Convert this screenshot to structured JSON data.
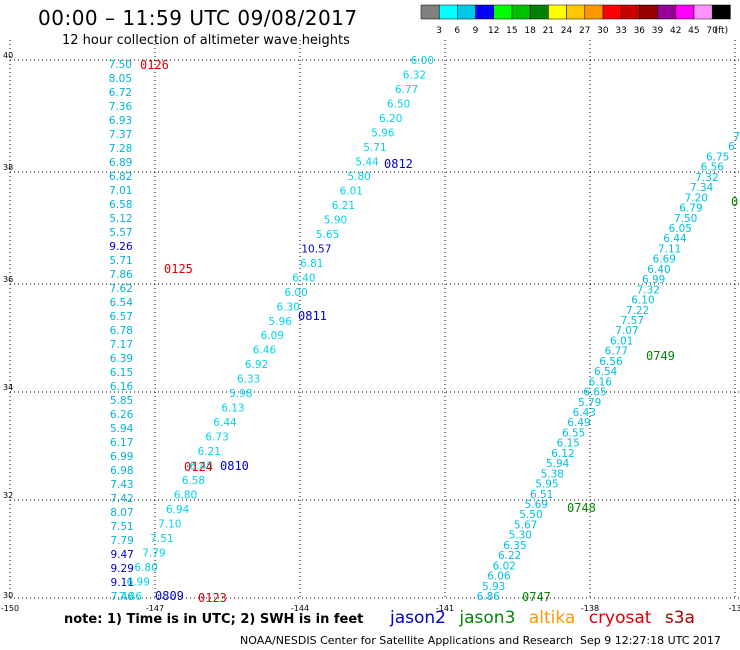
{
  "header": {
    "title": "00:00 – 11:59 UTC 09/08/2017",
    "subtitle": "12 hour collection of altimeter wave heights"
  },
  "colorbar": {
    "labels": [
      "3",
      "6",
      "9",
      "12",
      "15",
      "18",
      "21",
      "24",
      "27",
      "30",
      "33",
      "36",
      "39",
      "42",
      "45",
      "70",
      "(ft)"
    ],
    "colors": [
      "#808080",
      "#00ffff",
      "#00c8e6",
      "#0000ff",
      "#00ff00",
      "#00c000",
      "#008000",
      "#ffff00",
      "#ffc800",
      "#ff9600",
      "#ff0000",
      "#c80000",
      "#960000",
      "#960096",
      "#ff00ff",
      "#ff96ff",
      "#000000"
    ]
  },
  "axes": {
    "y_labels": [
      "40",
      "38",
      "36",
      "34",
      "32",
      "30"
    ],
    "x_labels": [
      "-150",
      "-147",
      "-144",
      "-141",
      "-138",
      "-13"
    ]
  },
  "tracks": {
    "west_labels": [
      "7.50",
      "8.05",
      "6.72",
      "7.36",
      "6.93",
      "7.37",
      "7.28",
      "6.89",
      "6.82",
      "7.01",
      "6.58",
      "5.12",
      "5.57",
      "9.26",
      "5.71",
      "7.86",
      "7.62",
      "6.54",
      "6.57",
      "6.78",
      "7.17",
      "6.39",
      "6.15",
      "6.16",
      "5.85",
      "6.26",
      "5.94",
      "6.17",
      "6.99",
      "6.98",
      "7.43",
      "7.42",
      "8.07",
      "7.51",
      "7.79",
      "9.47",
      "9.29",
      "9.11",
      "7.46"
    ],
    "west_highlight": [
      13,
      35,
      36,
      37
    ],
    "diag_labels": [
      "6.00",
      "6.32",
      "6.77",
      "6.50",
      "6.20",
      "5.96",
      "5.71",
      "5.44",
      "5.80",
      "6.01",
      "6.21",
      "5.90",
      "5.65",
      "10.57",
      "6.81",
      "6.40",
      "6.00",
      "6.30",
      "5.96",
      "6.09",
      "6.46",
      "6.92",
      "6.33",
      "5.98",
      "6.13",
      "6.44",
      "6.73",
      "6.21",
      "6.45",
      "6.58",
      "6.80",
      "6.94",
      "7.10",
      "7.51",
      "7.79",
      "6.80",
      "6.99",
      "7.46"
    ],
    "diag_highlight": [
      13
    ],
    "east_labels": [
      "7",
      "6",
      "6.75",
      "6.56",
      "7.32",
      "7.34",
      "7.20",
      "6.79",
      "7.50",
      "6.05",
      "6.44",
      "7.11",
      "6.69",
      "6.40",
      "6.99",
      "7.32",
      "6.10",
      "7.22",
      "7.57",
      "7.07",
      "6.01",
      "6.77",
      "6.56",
      "6.54",
      "6.16",
      "6.65",
      "5.79",
      "6.43",
      "6.49",
      "6.55",
      "6.15",
      "6.12",
      "5.94",
      "5.38",
      "5.95",
      "6.51",
      "5.69",
      "5.50",
      "5.67",
      "5.30",
      "6.35",
      "6.22",
      "6.02",
      "6.06",
      "5.93",
      "6.86"
    ]
  },
  "time_marks": [
    {
      "text": "0126",
      "sat": "cryosat"
    },
    {
      "text": "0125",
      "sat": "cryosat"
    },
    {
      "text": "0124",
      "sat": "cryosat"
    },
    {
      "text": "0123",
      "sat": "cryosat"
    },
    {
      "text": "0812",
      "sat": "jason2"
    },
    {
      "text": "0811",
      "sat": "jason2"
    },
    {
      "text": "0810",
      "sat": "jason2"
    },
    {
      "text": "0809",
      "sat": "jason2"
    },
    {
      "text": "0749",
      "sat": "jason3"
    },
    {
      "text": "0748",
      "sat": "jason3"
    },
    {
      "text": "0747",
      "sat": "jason3"
    },
    {
      "text": "0",
      "sat": "jason3"
    }
  ],
  "footer": {
    "note": "note:  1) Time is in UTC;  2) SWH is in feet",
    "legend": [
      {
        "label": "jason2",
        "color": "#0000cc"
      },
      {
        "label": "jason3",
        "color": "#008800"
      },
      {
        "label": "altika",
        "color": "#ff9900"
      },
      {
        "label": "cryosat",
        "color": "#dd0000"
      },
      {
        "label": "s3a",
        "color": "#aa0000"
      }
    ],
    "credit": "NOAA/NESDIS Center for Satellite Applications and Research",
    "timestamp": "Sep  9 12:27:18 UTC 2017"
  }
}
